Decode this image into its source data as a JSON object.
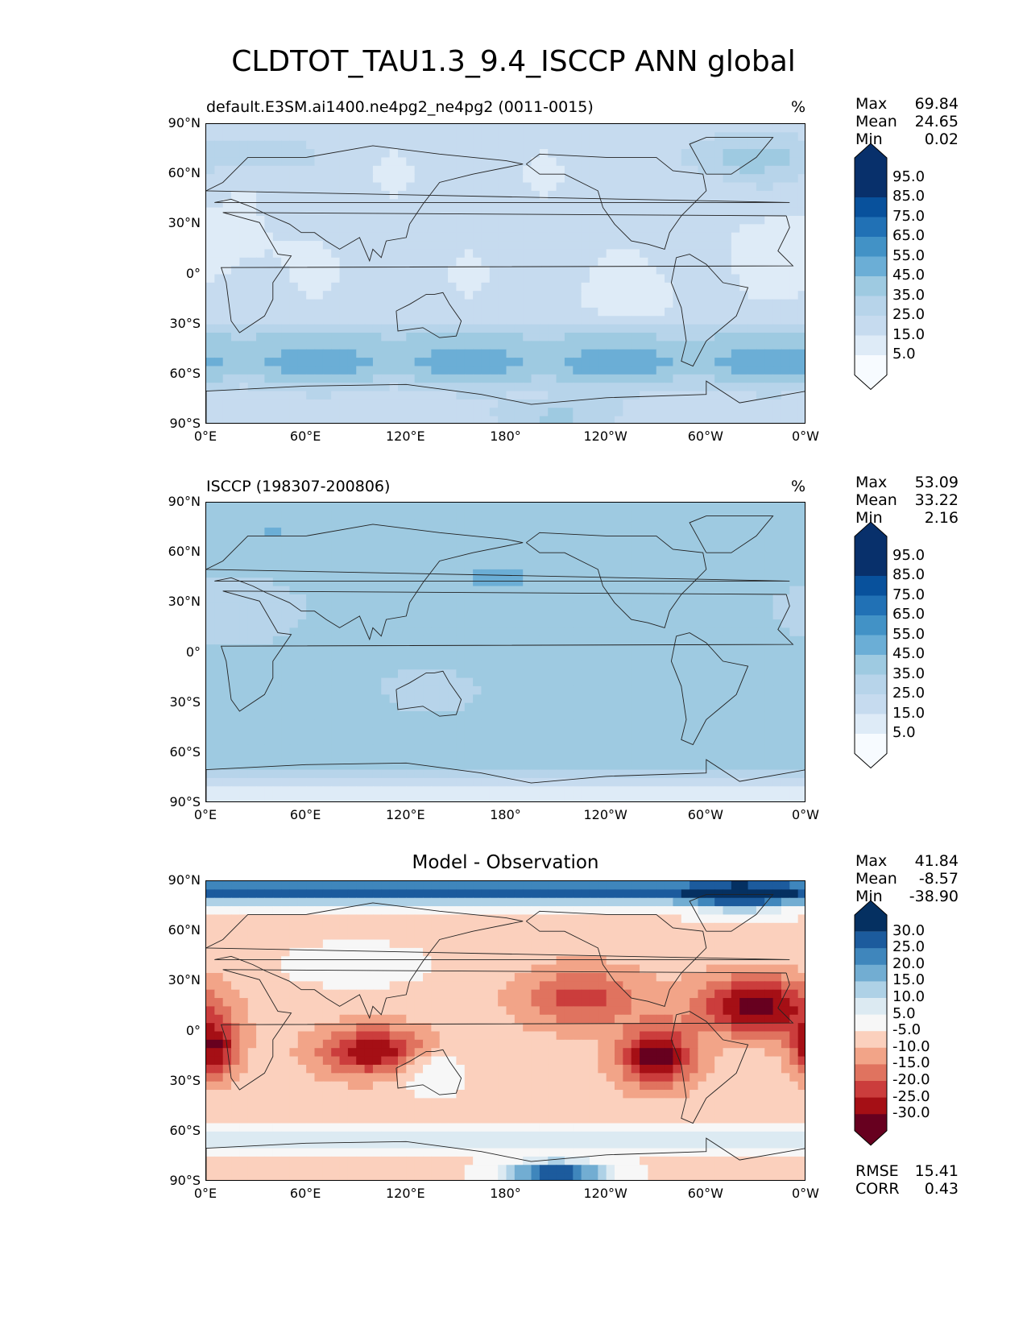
{
  "title": "CLDTOT_TAU1.3_9.4_ISCCP ANN global",
  "lat_labels": [
    "90°N",
    "60°N",
    "30°N",
    "0°",
    "30°S",
    "60°S",
    "90°S"
  ],
  "lon_labels": [
    "0°E",
    "60°E",
    "120°E",
    "180°",
    "120°W",
    "60°W",
    "0°W"
  ],
  "colors": {
    "blues": [
      "#f7fbff",
      "#deebf7",
      "#c6dbef",
      "#b7d4ea",
      "#9ecae1",
      "#6baed6",
      "#4292c6",
      "#2171b5",
      "#08519c",
      "#08306b"
    ],
    "diverging": [
      "#67001f",
      "#a50f15",
      "#cb3d3c",
      "#e0735f",
      "#f2a488",
      "#fbd0bd",
      "#f7f7f7",
      "#dceaf2",
      "#aed1e6",
      "#72add2",
      "#3f86bc",
      "#1c5b9d",
      "#053061"
    ]
  },
  "panels": [
    {
      "id": "model",
      "left_title": "default.E3SM.ai1400.ne4pg2_ne4pg2 (0011-0015)",
      "right_title": "%",
      "center_title": "",
      "stats": [
        {
          "label": "Max",
          "value": "69.84"
        },
        {
          "label": "Mean",
          "value": "24.65"
        },
        {
          "label": "Min",
          "value": "0.02"
        }
      ],
      "colorbar_levels": [
        "95.0",
        "85.0",
        "75.0",
        "65.0",
        "55.0",
        "45.0",
        "35.0",
        "25.0",
        "15.0",
        "5.0"
      ],
      "footer": []
    },
    {
      "id": "obs",
      "left_title": "ISCCP (198307-200806)",
      "right_title": "%",
      "center_title": "",
      "stats": [
        {
          "label": "Max",
          "value": "53.09"
        },
        {
          "label": "Mean",
          "value": "33.22"
        },
        {
          "label": "Min",
          "value": "2.16"
        }
      ],
      "colorbar_levels": [
        "95.0",
        "85.0",
        "75.0",
        "65.0",
        "55.0",
        "45.0",
        "35.0",
        "25.0",
        "15.0",
        "5.0"
      ],
      "footer": []
    },
    {
      "id": "diff",
      "left_title": "",
      "right_title": "",
      "center_title": "Model - Observation",
      "stats": [
        {
          "label": "Max",
          "value": "41.84"
        },
        {
          "label": "Mean",
          "value": "-8.57"
        },
        {
          "label": "Min",
          "value": "-38.90"
        }
      ],
      "colorbar_levels": [
        "30.0",
        "25.0",
        "20.0",
        "15.0",
        "10.0",
        "5.0",
        "-5.0",
        "-10.0",
        "-15.0",
        "-20.0",
        "-25.0",
        "-30.0"
      ],
      "footer": [
        {
          "label": "RMSE",
          "value": "15.41"
        },
        {
          "label": "CORR",
          "value": "0.43"
        }
      ]
    }
  ]
}
